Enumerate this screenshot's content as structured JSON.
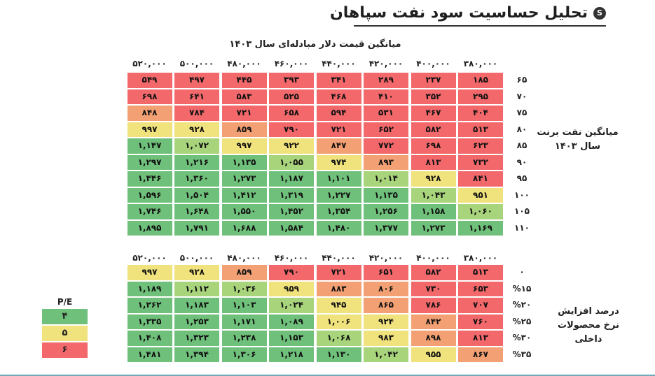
{
  "title": "تحلیل حساسیت سود نفت سپاهان",
  "colors": {
    "green": "#6fc07a",
    "light_green": "#a8d47c",
    "yellow": "#f0e27c",
    "orange": "#f3a174",
    "red": "#f2686b"
  },
  "chart_data": [
    {
      "type": "heatmap",
      "title": "میانگین قیمت دلار مبادله‌ای سال ۱۴۰۳",
      "ylabel": "میانگین نفت برنت سال ۱۴۰۳",
      "columns": [
        "۳۸۰,۰۰۰",
        "۴۰۰,۰۰۰",
        "۴۲۰,۰۰۰",
        "۴۴۰,۰۰۰",
        "۴۶۰,۰۰۰",
        "۴۸۰,۰۰۰",
        "۵۰۰,۰۰۰",
        "۵۲۰,۰۰۰"
      ],
      "rows": [
        "۶۵",
        "۷۰",
        "۷۵",
        "۸۰",
        "۸۵",
        "۹۰",
        "۹۵",
        "۱۰۰",
        "۱۰۵",
        "۱۱۰"
      ],
      "values": [
        [
          185,
          237,
          289,
          341,
          393,
          445,
          497,
          549
        ],
        [
          295,
          352,
          410,
          468,
          525,
          583,
          641,
          698
        ],
        [
          404,
          467,
          531,
          594,
          658,
          721,
          784,
          848
        ],
        [
          513,
          582,
          652,
          721,
          790,
          859,
          928,
          997
        ],
        [
          623,
          698,
          772,
          847,
          922,
          997,
          1072,
          1147
        ],
        [
          732,
          813,
          893,
          974,
          1055,
          1135,
          1216,
          1297
        ],
        [
          841,
          928,
          1014,
          1101,
          1187,
          1273,
          1360,
          1446
        ],
        [
          951,
          1043,
          1135,
          1227,
          1319,
          1412,
          1504,
          1596
        ],
        [
          1060,
          1158,
          1256,
          1354,
          1452,
          1550,
          1648,
          1746
        ],
        [
          1169,
          1273,
          1377,
          1480,
          1584,
          1688,
          1791,
          1895
        ]
      ],
      "cells": [
        [
          "۱۸۵",
          "۲۳۷",
          "۲۸۹",
          "۳۴۱",
          "۳۹۳",
          "۴۴۵",
          "۴۹۷",
          "۵۴۹"
        ],
        [
          "۲۹۵",
          "۳۵۲",
          "۴۱۰",
          "۴۶۸",
          "۵۲۵",
          "۵۸۳",
          "۶۴۱",
          "۶۹۸"
        ],
        [
          "۴۰۴",
          "۴۶۷",
          "۵۳۱",
          "۵۹۴",
          "۶۵۸",
          "۷۲۱",
          "۷۸۴",
          "۸۴۸"
        ],
        [
          "۵۱۳",
          "۵۸۲",
          "۶۵۲",
          "۷۲۱",
          "۷۹۰",
          "۸۵۹",
          "۹۲۸",
          "۹۹۷"
        ],
        [
          "۶۲۳",
          "۶۹۸",
          "۷۷۲",
          "۸۴۷",
          "۹۲۲",
          "۹۹۷",
          "۱,۰۷۲",
          "۱,۱۴۷"
        ],
        [
          "۷۳۲",
          "۸۱۳",
          "۸۹۳",
          "۹۷۴",
          "۱,۰۵۵",
          "۱,۱۳۵",
          "۱,۲۱۶",
          "۱,۲۹۷"
        ],
        [
          "۸۴۱",
          "۹۲۸",
          "۱,۰۱۴",
          "۱,۱۰۱",
          "۱,۱۸۷",
          "۱,۲۷۳",
          "۱,۳۶۰",
          "۱,۴۴۶"
        ],
        [
          "۹۵۱",
          "۱,۰۴۳",
          "۱,۱۳۵",
          "۱,۲۲۷",
          "۱,۳۱۹",
          "۱,۴۱۲",
          "۱,۵۰۴",
          "۱,۵۹۶"
        ],
        [
          "۱,۰۶۰",
          "۱,۱۵۸",
          "۱,۲۵۶",
          "۱,۳۵۴",
          "۱,۴۵۲",
          "۱,۵۵۰",
          "۱,۶۴۸",
          "۱,۷۴۶"
        ],
        [
          "۱,۱۶۹",
          "۱,۲۷۳",
          "۱,۳۷۷",
          "۱,۴۸۰",
          "۱,۵۸۴",
          "۱,۶۸۸",
          "۱,۷۹۱",
          "۱,۸۹۵"
        ]
      ],
      "cell_colors": [
        [
          "red",
          "red",
          "red",
          "red",
          "red",
          "red",
          "red",
          "red"
        ],
        [
          "red",
          "red",
          "red",
          "red",
          "red",
          "red",
          "red",
          "red"
        ],
        [
          "red",
          "red",
          "red",
          "red",
          "red",
          "red",
          "red",
          "orange"
        ],
        [
          "red",
          "red",
          "red",
          "red",
          "red",
          "orange",
          "yellow",
          "yellow"
        ],
        [
          "red",
          "red",
          "red",
          "orange",
          "yellow",
          "yellow",
          "light_green",
          "green"
        ],
        [
          "red",
          "red",
          "orange",
          "yellow",
          "light_green",
          "green",
          "green",
          "green"
        ],
        [
          "red",
          "yellow",
          "light_green",
          "green",
          "green",
          "green",
          "green",
          "green"
        ],
        [
          "yellow",
          "light_green",
          "green",
          "green",
          "green",
          "green",
          "green",
          "green"
        ],
        [
          "light_green",
          "green",
          "green",
          "green",
          "green",
          "green",
          "green",
          "green"
        ],
        [
          "green",
          "green",
          "green",
          "green",
          "green",
          "green",
          "green",
          "green"
        ]
      ]
    },
    {
      "type": "heatmap",
      "ylabel": "درصد افزایش نرخ محصولات داخلی",
      "columns": [
        "۳۸۰,۰۰۰",
        "۴۰۰,۰۰۰",
        "۴۲۰,۰۰۰",
        "۴۴۰,۰۰۰",
        "۴۶۰,۰۰۰",
        "۴۸۰,۰۰۰",
        "۵۰۰,۰۰۰",
        "۵۲۰,۰۰۰"
      ],
      "rows": [
        "۰",
        "%۱۵",
        "%۲۰",
        "%۲۵",
        "%۳۰",
        "%۳۵"
      ],
      "values": [
        [
          513,
          582,
          651,
          721,
          790,
          859,
          928,
          997
        ],
        [
          653,
          730,
          806,
          883,
          959,
          1036,
          1112,
          1189
        ],
        [
          707,
          786,
          865,
          945,
          1024,
          1103,
          1183,
          1262
        ],
        [
          760,
          842,
          924,
          1006,
          1089,
          1171,
          1253,
          1335
        ],
        [
          813,
          898,
          983,
          1068,
          1153,
          1238,
          1323,
          1408
        ],
        [
          867,
          955,
          1042,
          1130,
          1218,
          1306,
          1394,
          1481
        ]
      ],
      "cells": [
        [
          "۵۱۳",
          "۵۸۲",
          "۶۵۱",
          "۷۲۱",
          "۷۹۰",
          "۸۵۹",
          "۹۲۸",
          "۹۹۷"
        ],
        [
          "۶۵۳",
          "۷۳۰",
          "۸۰۶",
          "۸۸۳",
          "۹۵۹",
          "۱,۰۳۶",
          "۱,۱۱۲",
          "۱,۱۸۹"
        ],
        [
          "۷۰۷",
          "۷۸۶",
          "۸۶۵",
          "۹۴۵",
          "۱,۰۲۴",
          "۱,۱۰۳",
          "۱,۱۸۳",
          "۱,۲۶۲"
        ],
        [
          "۷۶۰",
          "۸۴۲",
          "۹۲۴",
          "۱,۰۰۶",
          "۱,۰۸۹",
          "۱,۱۷۱",
          "۱,۲۵۳",
          "۱,۳۳۵"
        ],
        [
          "۸۱۳",
          "۸۹۸",
          "۹۸۳",
          "۱,۰۶۸",
          "۱,۱۵۳",
          "۱,۲۳۸",
          "۱,۳۲۳",
          "۱,۴۰۸"
        ],
        [
          "۸۶۷",
          "۹۵۵",
          "۱,۰۴۲",
          "۱,۱۳۰",
          "۱,۲۱۸",
          "۱,۳۰۶",
          "۱,۳۹۴",
          "۱,۴۸۱"
        ]
      ],
      "cell_colors": [
        [
          "red",
          "red",
          "red",
          "red",
          "red",
          "orange",
          "yellow",
          "yellow"
        ],
        [
          "red",
          "red",
          "orange",
          "orange",
          "yellow",
          "light_green",
          "light_green",
          "green"
        ],
        [
          "red",
          "red",
          "orange",
          "yellow",
          "light_green",
          "green",
          "green",
          "green"
        ],
        [
          "red",
          "orange",
          "yellow",
          "yellow",
          "green",
          "green",
          "green",
          "green"
        ],
        [
          "red",
          "orange",
          "yellow",
          "light_green",
          "green",
          "green",
          "green",
          "green"
        ],
        [
          "orange",
          "yellow",
          "light_green",
          "green",
          "green",
          "green",
          "green",
          "green"
        ]
      ]
    }
  ],
  "legend": {
    "title": "P/E",
    "items": [
      {
        "label": "۴",
        "color": "green"
      },
      {
        "label": "۵",
        "color": "yellow"
      },
      {
        "label": "۶",
        "color": "red"
      }
    ]
  }
}
